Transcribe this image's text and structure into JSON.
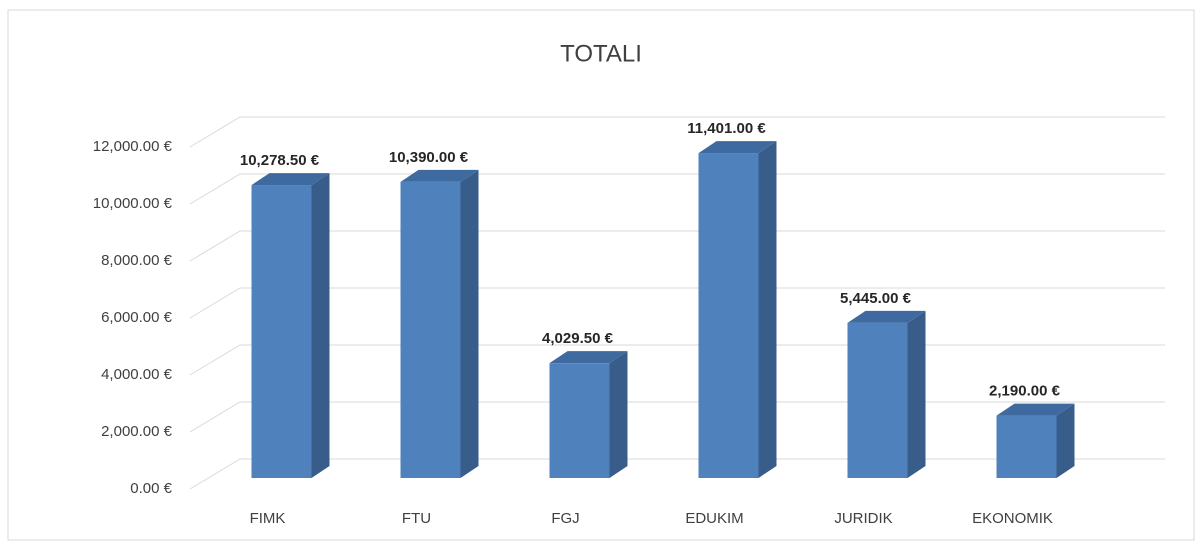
{
  "chart_data": {
    "type": "bar3d",
    "title": "TOTALI",
    "categories": [
      "FIMK",
      "FTU",
      "FGJ",
      "EDUKIM",
      "JURIDIK",
      "EKONOMIK"
    ],
    "values": [
      10278.5,
      10390,
      4029.5,
      11401,
      5445,
      2190
    ],
    "value_labels": [
      "10,278.50 €",
      "10,390.00 €",
      "4,029.50 €",
      "11,401.00 €",
      "5,445.00 €",
      "2,190.00 €"
    ],
    "color": "#4f81bd",
    "ylim": [
      0,
      12000
    ],
    "yticks": [
      {
        "value": 0,
        "label": "0.00 €"
      },
      {
        "value": 2000,
        "label": "2,000.00 €"
      },
      {
        "value": 4000,
        "label": "4,000.00 €"
      },
      {
        "value": 6000,
        "label": "6,000.00 €"
      },
      {
        "value": 8000,
        "label": "8,000.00 €"
      },
      {
        "value": 10000,
        "label": "10,000.00 €"
      },
      {
        "value": 12000,
        "label": "12,000.00 €"
      }
    ],
    "grid": true
  }
}
